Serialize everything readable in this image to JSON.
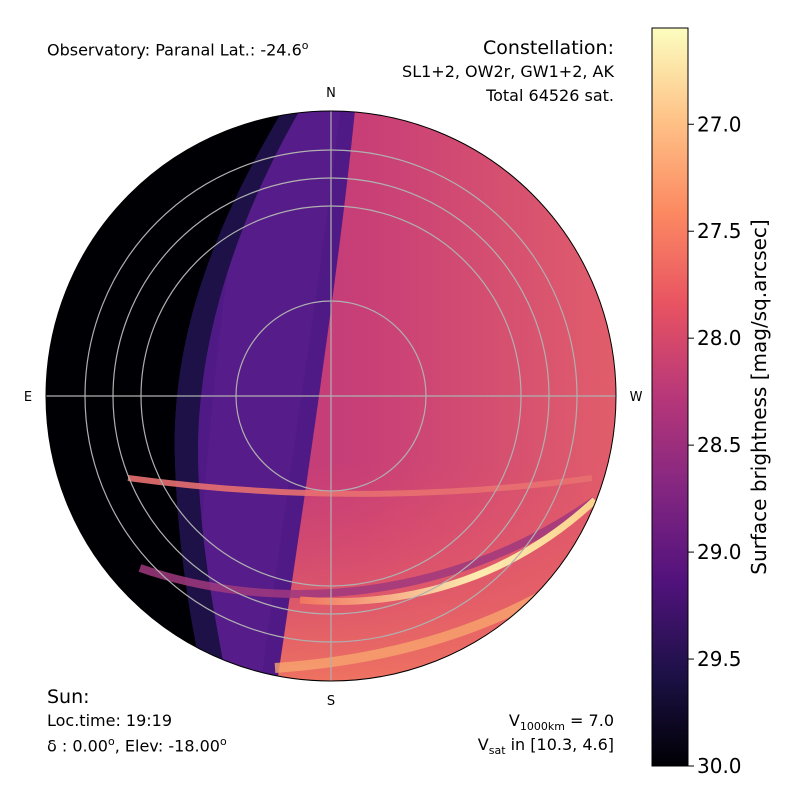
{
  "header": {
    "observatory": "Observatory: Paranal Lat.: -24.6",
    "observatory_sup": "o",
    "constellation_title": "Constellation:",
    "constellation_list": "SL1+2, OW2r, GW1+2, AK",
    "constellation_total": "Total 64526 sat."
  },
  "sun": {
    "title": "Sun:",
    "loc_time": "Loc.time: 19:19",
    "delta_prefix": "δ : 0.00",
    "elev_prefix": ", Elev: -18.00",
    "deg_sup": "o"
  },
  "vsat": {
    "v1000_label": "V",
    "v1000_sub": "1000km",
    "v1000_value": " = 7.0",
    "vsat_label": "V",
    "vsat_sub": "sat",
    "vsat_range": " in [10.3, 4.6]"
  },
  "chart_data": {
    "type": "heatmap",
    "projection": "polar all-sky (zenith center, horizon edge)",
    "directions": [
      "N",
      "E",
      "S",
      "W"
    ],
    "altitude_rings": [
      10,
      20,
      30,
      40,
      70
    ],
    "colorbar": {
      "label": "Surface brightness [mag/sq.arcsec]",
      "ticks": [
        "27.0",
        "27.5",
        "28.0",
        "28.5",
        "29.0",
        "29.5",
        "30.0"
      ],
      "tick_values": [
        27.0,
        27.5,
        28.0,
        28.5,
        29.0,
        29.5,
        30.0
      ],
      "range": [
        26.55,
        30.0
      ],
      "colormap": "magma_r",
      "stops": [
        "#fcfdbf",
        "#fec287",
        "#fc8961",
        "#e85362",
        "#b73779",
        "#832681",
        "#51127c",
        "#1d1147",
        "#000004"
      ]
    },
    "regions": [
      {
        "name": "eastern horizon shadow",
        "brightness": 30.0
      },
      {
        "name": "eastern sky (Earth shadow)",
        "brightness": 29.1
      },
      {
        "name": "western sky (sunlit satellites)",
        "brightness": 28.2
      },
      {
        "name": "bright arc near southern horizon",
        "brightness": 26.6
      }
    ]
  }
}
